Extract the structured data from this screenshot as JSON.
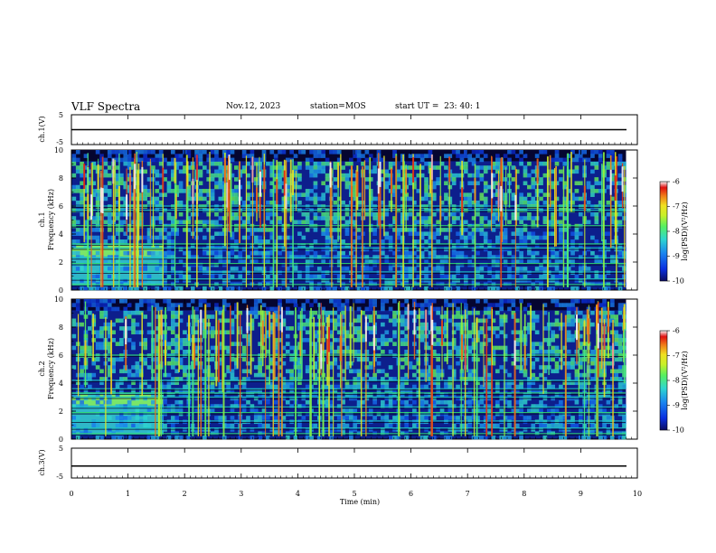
{
  "header": {
    "title": "VLF Spectra",
    "date": "Nov.12, 2023",
    "station": "station=MOS",
    "start": "start UT =  23: 40: 1"
  },
  "colors": {
    "colormap": [
      "#0b0b60",
      "#0a2fe0",
      "#1a86f0",
      "#2ed6d0",
      "#56f060",
      "#c8f028",
      "#f0e020",
      "#f07818",
      "#e01010",
      "#f8f8f8"
    ],
    "trace": "#000000"
  },
  "chart_data": [
    {
      "type": "line",
      "panel": "ch1-waveform",
      "ylabel": "ch.1(V)",
      "ylim": [
        -5,
        5
      ],
      "yticks": [
        "5",
        "-5"
      ],
      "x": [
        0,
        10
      ],
      "values": [
        0,
        0
      ]
    },
    {
      "type": "heatmap",
      "panel": "ch1-spectrogram",
      "ylabel": "ch.1\nFrequency (kHz)",
      "ylim": [
        0,
        10
      ],
      "yticks": [
        "0",
        "2",
        "4",
        "6",
        "8",
        "10"
      ],
      "xlim": [
        0,
        10
      ],
      "colorbar": {
        "label": "log(PSD)(V²/Hz)",
        "ticks": [
          "-6",
          "-7",
          "-8",
          "-9",
          "-10"
        ],
        "range": [
          -10,
          -6
        ]
      },
      "features": {
        "low_freq_band_end_min": 1.62,
        "low_band_khz": [
          0.3,
          3.3
        ],
        "hiss_khz": [
          4.2,
          10
        ],
        "horizontal_lines_khz": [
          0.4,
          0.8,
          1.3,
          1.9,
          2.3,
          3.0,
          3.3,
          5.7,
          6.0,
          4.6
        ]
      }
    },
    {
      "type": "heatmap",
      "panel": "ch2-spectrogram",
      "ylabel": "ch.2\nFrequency (kHz)",
      "ylim": [
        0,
        10
      ],
      "yticks": [
        "0",
        "2",
        "4",
        "6",
        "8",
        "10"
      ],
      "xlim": [
        0,
        10
      ],
      "colorbar": {
        "label": "log(PSD)(V²/Hz)",
        "ticks": [
          "-6",
          "-7",
          "-8",
          "-9",
          "-10"
        ],
        "range": [
          -10,
          -6
        ]
      },
      "features": {
        "low_freq_band_end_min": 1.62,
        "low_band_khz": [
          0.3,
          3.3
        ],
        "hiss_khz": [
          4.0,
          10
        ],
        "horizontal_lines_khz": [
          0.4,
          0.8,
          1.3,
          1.9,
          2.3,
          3.0,
          3.3,
          4.2,
          3.6,
          6.0
        ]
      }
    },
    {
      "type": "line",
      "panel": "ch3-waveform",
      "ylabel": "ch.3(V)",
      "ylim": [
        -5,
        5
      ],
      "yticks": [
        "5",
        "-5"
      ],
      "x": [
        0,
        10
      ],
      "values": [
        -1,
        -1
      ]
    }
  ],
  "xaxis": {
    "label": "Time (min)",
    "ticks": [
      "0",
      "1",
      "2",
      "3",
      "4",
      "5",
      "6",
      "7",
      "8",
      "9",
      "10"
    ],
    "xlim": [
      0,
      10
    ]
  }
}
